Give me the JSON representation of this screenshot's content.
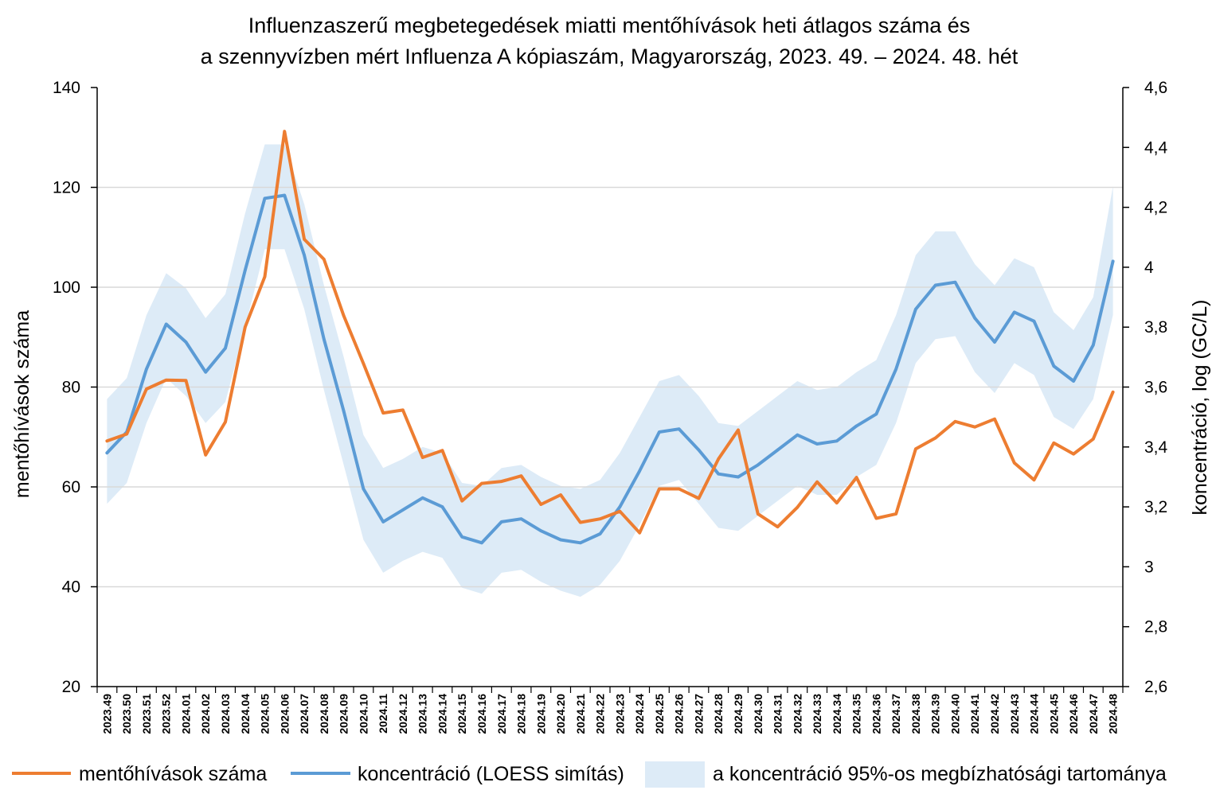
{
  "chart_data": {
    "type": "line",
    "title": [
      "Influenzaszerű megbetegedések miatti mentőhívások heti átlagos száma és",
      "a szennyvízben mért Influenza A kópiaszám, Magyarország, 2023. 49. – 2024. 48. hét"
    ],
    "ylabel_left": "mentőhívások száma",
    "ylabel_right": "koncentráció, log (GC/L)",
    "ylim_left": [
      20,
      140
    ],
    "ylim_right": [
      2.6,
      4.6
    ],
    "yticks_left": [
      "20",
      "40",
      "60",
      "80",
      "100",
      "120",
      "140"
    ],
    "yticks_right": [
      "2,6",
      "2,8",
      "3",
      "3,2",
      "3,4",
      "3,6",
      "3,8",
      "4",
      "4,2",
      "4,4",
      "4,6"
    ],
    "grid": true,
    "legend": "bottom",
    "categories": [
      "2023.49",
      "2023.50",
      "2023.51",
      "2023.52",
      "2024.01",
      "2024.02",
      "2024.03",
      "2024.04",
      "2024.05",
      "2024.06",
      "2024.07",
      "2024.08",
      "2024.09",
      "2024.10",
      "2024.11",
      "2024.12",
      "2024.13",
      "2024.14",
      "2024.15",
      "2024.16",
      "2024.17",
      "2024.18",
      "2024.19",
      "2024.20",
      "2024.21",
      "2024.22",
      "2024.23",
      "2024.24",
      "2024.25",
      "2024.26",
      "2024.27",
      "2024.28",
      "2024.29",
      "2024.30",
      "2024.31",
      "2024.32",
      "2024.33",
      "2024.34",
      "2024.35",
      "2024.36",
      "2024.37",
      "2024.38",
      "2024.39",
      "2024.40",
      "2024.41",
      "2024.42",
      "2024.43",
      "2024.44",
      "2024.45",
      "2024.46",
      "2024.47",
      "2024.48"
    ],
    "series": [
      {
        "name": "mentőhívások száma",
        "axis": "left",
        "color": "#ED7D31",
        "values": [
          69.2,
          70.6,
          79.6,
          81.4,
          81.3,
          66.4,
          73.0,
          92.0,
          102.1,
          131.2,
          109.6,
          105.6,
          94.3,
          84.7,
          74.8,
          75.4,
          65.9,
          67.3,
          57.2,
          60.7,
          61.1,
          62.2,
          56.5,
          58.4,
          52.9,
          53.6,
          55.1,
          50.8,
          59.6,
          59.6,
          57.7,
          65.6,
          71.4,
          54.6,
          52.0,
          55.9,
          61.0,
          56.8,
          61.9,
          53.7,
          54.6,
          67.6,
          69.8,
          73.1,
          72.0,
          73.6,
          64.8,
          61.4,
          68.8,
          66.6,
          69.6,
          79.0
        ]
      },
      {
        "name": "koncentráció (LOESS simítás)",
        "axis": "right",
        "color": "#5B9BD5",
        "values": [
          3.38,
          3.45,
          3.66,
          3.81,
          3.75,
          3.65,
          3.73,
          3.99,
          4.23,
          4.24,
          4.04,
          3.76,
          3.52,
          3.26,
          3.15,
          3.19,
          3.23,
          3.2,
          3.1,
          3.08,
          3.15,
          3.16,
          3.12,
          3.09,
          3.08,
          3.11,
          3.2,
          3.32,
          3.45,
          3.46,
          3.39,
          3.31,
          3.3,
          3.34,
          3.39,
          3.44,
          3.41,
          3.42,
          3.47,
          3.51,
          3.66,
          3.86,
          3.94,
          3.95,
          3.83,
          3.75,
          3.85,
          3.82,
          3.67,
          3.62,
          3.74,
          4.02
        ]
      }
    ],
    "band": {
      "name": "a koncentráció 95%-os megbízhatósági tartománya",
      "axis": "right",
      "color": "#DDEBF7",
      "upper": [
        3.56,
        3.63,
        3.84,
        3.98,
        3.93,
        3.83,
        3.91,
        4.18,
        4.41,
        4.41,
        4.21,
        3.94,
        3.7,
        3.44,
        3.33,
        3.36,
        3.4,
        3.38,
        3.28,
        3.27,
        3.33,
        3.34,
        3.3,
        3.27,
        3.26,
        3.29,
        3.38,
        3.5,
        3.62,
        3.64,
        3.57,
        3.48,
        3.47,
        3.52,
        3.57,
        3.62,
        3.59,
        3.6,
        3.65,
        3.69,
        3.84,
        4.04,
        4.12,
        4.12,
        4.01,
        3.94,
        4.03,
        4.0,
        3.85,
        3.79,
        3.9,
        4.27
      ],
      "lower": [
        3.21,
        3.28,
        3.48,
        3.63,
        3.57,
        3.48,
        3.55,
        3.8,
        4.06,
        4.06,
        3.86,
        3.59,
        3.34,
        3.09,
        2.98,
        3.02,
        3.05,
        3.03,
        2.93,
        2.91,
        2.98,
        2.99,
        2.95,
        2.92,
        2.9,
        2.94,
        3.02,
        3.14,
        3.27,
        3.29,
        3.21,
        3.13,
        3.12,
        3.17,
        3.22,
        3.27,
        3.24,
        3.24,
        3.3,
        3.34,
        3.48,
        3.68,
        3.76,
        3.77,
        3.65,
        3.58,
        3.68,
        3.64,
        3.5,
        3.46,
        3.56,
        3.84
      ]
    }
  },
  "colors": {
    "grid": "#D9D9D9",
    "axis": "#000000",
    "text": "#000000"
  }
}
